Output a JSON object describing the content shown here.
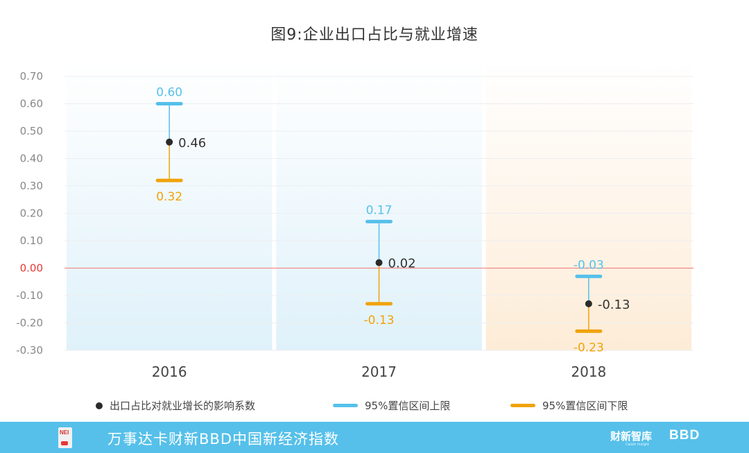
{
  "chart_data": {
    "type": "errorbar",
    "title": "图9:企业出口占比与就业增速",
    "categories": [
      "2016",
      "2017",
      "2018"
    ],
    "y_ticks": [
      "0.70",
      "0.60",
      "0.50",
      "0.40",
      "0.30",
      "0.20",
      "0.10",
      "0.00",
      "-0.10",
      "-0.20",
      "-0.30"
    ],
    "ylim": [
      -0.3,
      0.7
    ],
    "grid": true,
    "series": [
      {
        "name": "出口占比对就业增长的影响系数",
        "values": [
          0.46,
          0.02,
          -0.13
        ],
        "labels": [
          "0.46",
          "0.02",
          "-0.13"
        ]
      },
      {
        "name": "95%置信区间上限",
        "values": [
          0.6,
          0.17,
          -0.03
        ],
        "labels": [
          "0.60",
          "0.17",
          "-0.03"
        ]
      },
      {
        "name": "95%置信区间下限",
        "values": [
          0.32,
          -0.13,
          -0.23
        ],
        "labels": [
          "0.32",
          "-0.13",
          "-0.23"
        ]
      }
    ],
    "colors": {
      "point": "#2b2b2b",
      "upper": "#56c0ea",
      "lower": "#f0a30a",
      "zero_line": "#f28b8b",
      "zero_label": "#e53935",
      "panel_blue": "#dff1fa",
      "panel_orange": "#fdecd7"
    },
    "legend_position": "bottom"
  },
  "footer": {
    "logo_text": "NEI",
    "index_name": "万事达卡财新BBD中国新经济指数",
    "brand": "财新智库",
    "brand_sub": "Caixin Insight",
    "brand_bbd": "BBD"
  }
}
